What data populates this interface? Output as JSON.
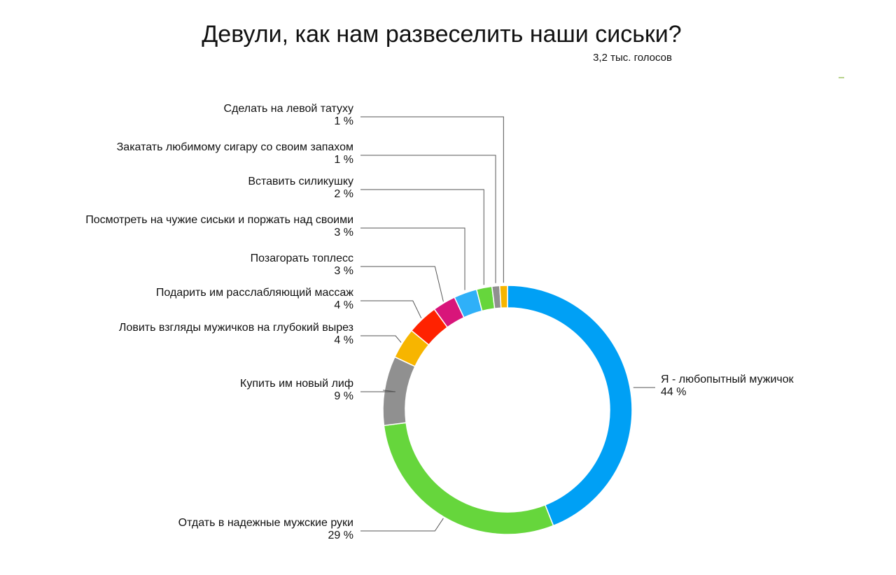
{
  "chart_data": {
    "type": "pie",
    "title": "Девули, как нам развеселить наши сиськи?",
    "subtitle": "3,2 тыс. голосов",
    "slices": [
      {
        "label": "Я - любопытный мужичок",
        "value": 44,
        "value_label": "44 %",
        "color": "#00a0f5"
      },
      {
        "label": "Отдать в надежные мужские руки",
        "value": 29,
        "value_label": "29 %",
        "color": "#66d63c"
      },
      {
        "label": "Купить им новый лиф",
        "value": 9,
        "value_label": "9 %",
        "color": "#909090"
      },
      {
        "label": "Ловить взгляды мужичков на глубокий вырез",
        "value": 4,
        "value_label": "4 %",
        "color": "#f7b500"
      },
      {
        "label": "Подарить им расслабляющий массаж",
        "value": 4,
        "value_label": "4 %",
        "color": "#ff2200"
      },
      {
        "label": "Позагорать топлесс",
        "value": 3,
        "value_label": "3 %",
        "color": "#d8157a"
      },
      {
        "label": "Посмотреть на чужие сиськи и поржать над своими",
        "value": 3,
        "value_label": "3 %",
        "color": "#2fb0f8"
      },
      {
        "label": "Вставить силикушку",
        "value": 2,
        "value_label": "2 %",
        "color": "#66d63c"
      },
      {
        "label": "Закатать любимому сигару со своим запахом",
        "value": 1,
        "value_label": "1 %",
        "color": "#909090"
      },
      {
        "label": "Сделать на левой татуху",
        "value": 1,
        "value_label": "1 %",
        "color": "#f7b500"
      }
    ],
    "accent_color": "#b7d38c"
  }
}
